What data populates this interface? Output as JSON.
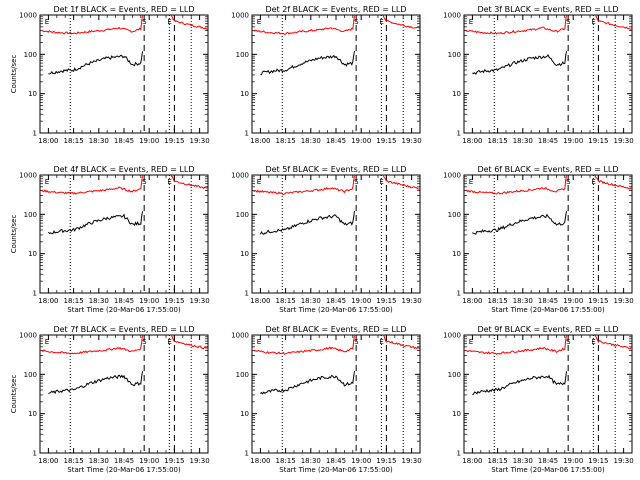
{
  "figure": {
    "panels": [
      {
        "title": "Det 1f BLACK = Events, RED = LLD",
        "xlabel": "Start Time (20-Mar-06 17:55:00)",
        "ylabel": "Counts/sec",
        "show_xlabel": false,
        "show_ylabel": true,
        "black_gaps": []
      },
      {
        "title": "Det 2f BLACK = Events, RED = LLD",
        "xlabel": "Start Time (20-Mar-06 17:55:00)",
        "ylabel": "Counts/sec",
        "show_xlabel": false,
        "show_ylabel": false,
        "black_gaps": []
      },
      {
        "title": "Det 3f BLACK = Events, RED = LLD",
        "xlabel": "Start Time (20-Mar-06 17:55:00)",
        "ylabel": "Counts/sec",
        "show_xlabel": false,
        "show_ylabel": false,
        "black_gaps": []
      },
      {
        "title": "Det 4f BLACK = Events, RED = LLD",
        "xlabel": "Start Time (20-Mar-06 17:55:00)",
        "ylabel": "Counts/sec",
        "show_xlabel": true,
        "show_ylabel": true,
        "black_gaps": []
      },
      {
        "title": "Det 5f BLACK = Events, RED = LLD",
        "xlabel": "Start Time (20-Mar-06 17:55:00)",
        "ylabel": "Counts/sec",
        "show_xlabel": true,
        "show_ylabel": false,
        "black_gaps": []
      },
      {
        "title": "Det 6f BLACK = Events, RED = LLD",
        "xlabel": "Start Time (20-Mar-06 17:55:00)",
        "ylabel": "Counts/sec",
        "show_xlabel": true,
        "show_ylabel": false,
        "black_gaps": []
      },
      {
        "title": "Det 7f BLACK = Events, RED = LLD",
        "xlabel": "Start Time (20-Mar-06 17:55:00)",
        "ylabel": "Counts/sec",
        "show_xlabel": true,
        "show_ylabel": true,
        "black_gaps": []
      },
      {
        "title": "Det 8f BLACK = Events, RED = LLD",
        "xlabel": "Start Time (20-Mar-06 17:55:00)",
        "ylabel": "Counts/sec",
        "show_xlabel": true,
        "show_ylabel": false,
        "black_gaps": []
      },
      {
        "title": "Det 9f BLACK = Events, RED = LLD",
        "xlabel": "Start Time (20-Mar-06 17:55:00)",
        "ylabel": "Counts/sec",
        "show_xlabel": true,
        "show_ylabel": false,
        "black_gaps": []
      }
    ]
  },
  "chart_data": {
    "type": "line",
    "xticks": [
      "18:00",
      "18:15",
      "18:30",
      "18:45",
      "19:00",
      "19:15",
      "19:30"
    ],
    "yticks": [
      "1",
      "10",
      "100",
      "1000"
    ],
    "xlim": [
      "17:55",
      "19:35"
    ],
    "ylim": [
      1,
      1000
    ],
    "yscale": "log",
    "markers": [
      {
        "label": "E",
        "time": "17:59",
        "style": "none"
      },
      {
        "label": "",
        "time": "18:13",
        "style": "dotted"
      },
      {
        "label": "S",
        "time": "18:57",
        "style": "dashed"
      },
      {
        "label": "E",
        "time": "19:12",
        "style": "dotted"
      },
      {
        "label": "",
        "time": "19:15",
        "style": "dashed"
      },
      {
        "label": "",
        "time": "19:25",
        "style": "dotted"
      }
    ],
    "series": [
      {
        "color": "#ff0000",
        "segments": [
          [
            [
              "17:56",
              400
            ],
            [
              "18:05",
              360
            ],
            [
              "18:15",
              340
            ],
            [
              "18:25",
              380
            ],
            [
              "18:35",
              420
            ],
            [
              "18:42",
              470
            ],
            [
              "18:50",
              380
            ],
            [
              "18:55",
              450
            ],
            [
              "18:56",
              1000
            ]
          ],
          [
            [
              "19:13",
              1000
            ],
            [
              "19:15",
              700
            ],
            [
              "19:25",
              550
            ],
            [
              "19:35",
              450
            ]
          ]
        ]
      },
      {
        "color": "#000000",
        "segments": [
          [
            [
              "18:00",
              33
            ],
            [
              "18:08",
              38
            ],
            [
              "18:15",
              40
            ],
            [
              "18:25",
              60
            ],
            [
              "18:35",
              80
            ],
            [
              "18:45",
              90
            ],
            [
              "18:50",
              55
            ],
            [
              "18:55",
              60
            ],
            [
              "18:56",
              120
            ]
          ]
        ]
      }
    ]
  }
}
